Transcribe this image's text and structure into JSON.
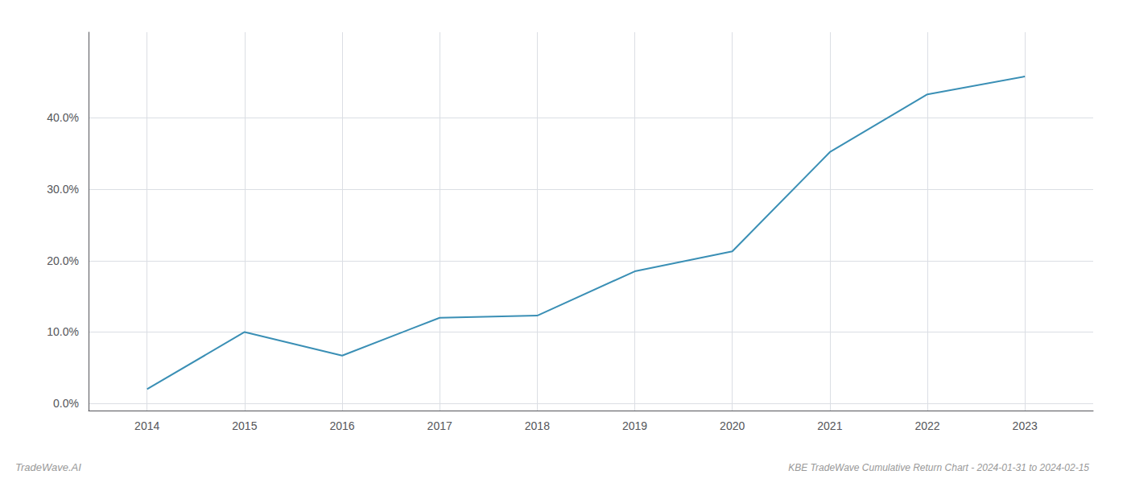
{
  "chart_data": {
    "type": "line",
    "title": "KBE TradeWave Cumulative Return Chart - 2024-01-31 to 2024-02-15",
    "annotations": [
      "TradeWave.AI"
    ],
    "x": [
      2014,
      2015,
      2016,
      2017,
      2018,
      2019,
      2020,
      2021,
      2022,
      2023
    ],
    "values": [
      0.02,
      0.1,
      0.067,
      0.12,
      0.123,
      0.185,
      0.213,
      0.352,
      0.433,
      0.458
    ],
    "color": "#3a8fb5",
    "xlim": [
      2013.4,
      2023.7
    ],
    "xticks": [
      2014,
      2015,
      2016,
      2017,
      2018,
      2019,
      2020,
      2021,
      2022,
      2023
    ],
    "ylim": [
      -0.01,
      0.52
    ],
    "yticks": [
      {
        "value": 0.0,
        "label": "0.0%"
      },
      {
        "value": 0.1,
        "label": "10.0%"
      },
      {
        "value": 0.2,
        "label": "20.0%"
      },
      {
        "value": 0.3,
        "label": "30.0%"
      },
      {
        "value": 0.4,
        "label": "40.0%"
      }
    ],
    "grid": true
  }
}
